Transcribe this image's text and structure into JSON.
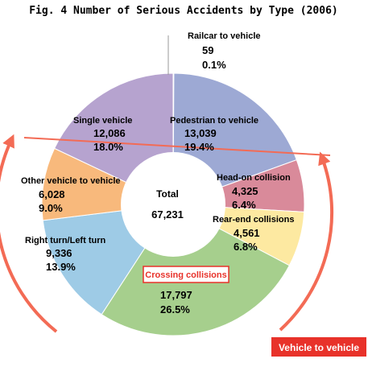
{
  "chart_data": {
    "type": "pie",
    "title": "Fig. 4  Number of Serious Accidents by Type (2006)",
    "center_label": "Total",
    "total": "67,231",
    "slices": [
      {
        "label": "Railcar to vehicle",
        "value": 59,
        "value_text": "59",
        "percent_text": "0.1%",
        "color": "#ffffff"
      },
      {
        "label": "Pedestrian to vehicle",
        "value": 13039,
        "value_text": "13,039",
        "percent_text": "19.4%",
        "color": "#9da9d4"
      },
      {
        "label": "Head-on collision",
        "value": 4325,
        "value_text": "4,325",
        "percent_text": "6.4%",
        "color": "#d98a9a"
      },
      {
        "label": "Rear-end collisions",
        "value": 4561,
        "value_text": "4,561",
        "percent_text": "6.8%",
        "color": "#fde9a1"
      },
      {
        "label": "Crossing collisions",
        "value": 17797,
        "value_text": "17,797",
        "percent_text": "26.5%",
        "color": "#a6cf8d"
      },
      {
        "label": "Right turn/Left turn",
        "value": 9336,
        "value_text": "9,336",
        "percent_text": "13.9%",
        "color": "#9ecbe6"
      },
      {
        "label": "Other vehicle to vehicle",
        "value": 6028,
        "value_text": "6,028",
        "percent_text": "9.0%",
        "color": "#f8b97c"
      },
      {
        "label": "Single vehicle",
        "value": 12086,
        "value_text": "12,086",
        "percent_text": "18.0%",
        "color": "#b6a3cf"
      }
    ],
    "group_label": "Vehicle to vehicle",
    "accent_color": "#f36b55"
  }
}
